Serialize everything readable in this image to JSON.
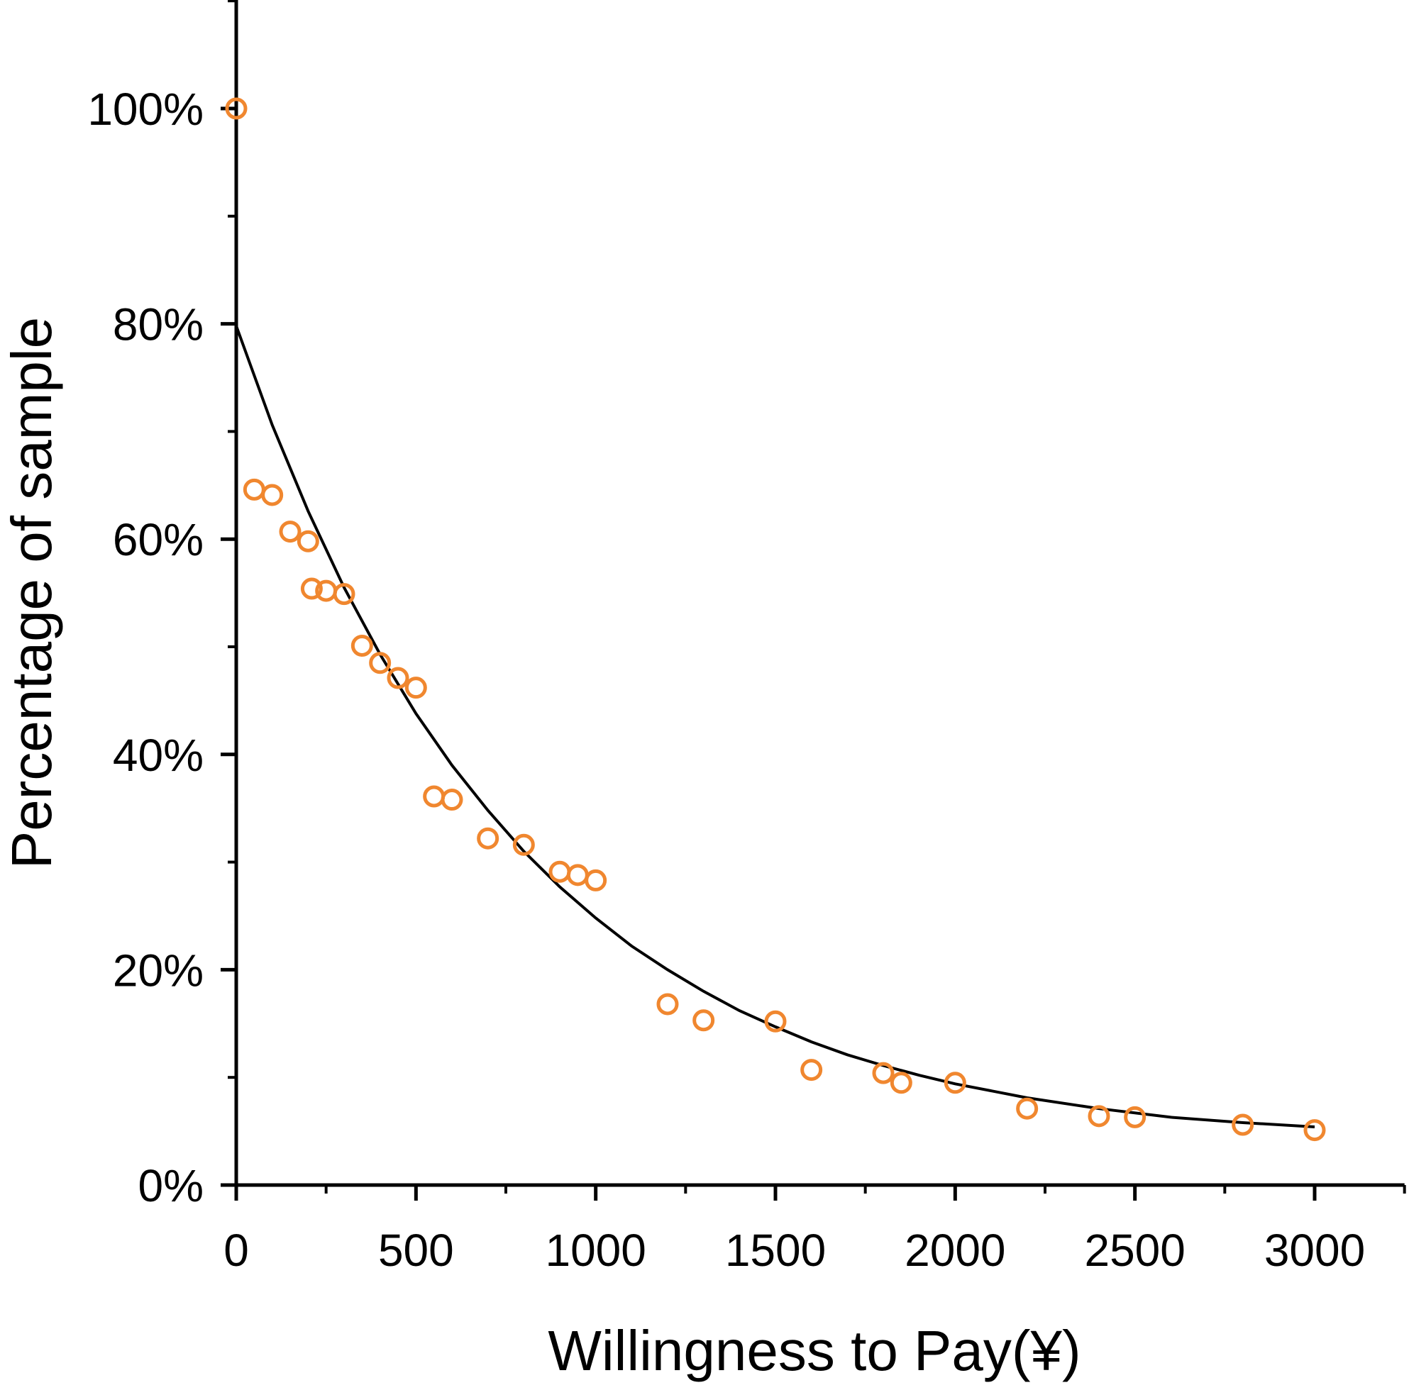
{
  "chart_data": {
    "type": "scatter",
    "xlabel": "Willingness to Pay(¥)",
    "ylabel": "Percentage of sample",
    "xlim": [
      0,
      3250
    ],
    "ylim": [
      0,
      110
    ],
    "x_ticks": [
      0,
      500,
      1000,
      1500,
      2000,
      2500,
      3000
    ],
    "x_tick_labels": [
      "0",
      "500",
      "1000",
      "1500",
      "2000",
      "2500",
      "3000"
    ],
    "y_ticks": [
      0,
      20,
      40,
      60,
      80,
      100
    ],
    "y_tick_labels": [
      "0%",
      "20%",
      "40%",
      "60%",
      "80%",
      "100%"
    ],
    "grid": false,
    "colors": {
      "points": "#F0872F",
      "curve": "#000000"
    },
    "points": [
      {
        "x": 0,
        "y": 100
      },
      {
        "x": 50,
        "y": 64.6
      },
      {
        "x": 100,
        "y": 64.1
      },
      {
        "x": 150,
        "y": 60.7
      },
      {
        "x": 200,
        "y": 59.8
      },
      {
        "x": 210,
        "y": 55.4
      },
      {
        "x": 250,
        "y": 55.2
      },
      {
        "x": 300,
        "y": 54.9
      },
      {
        "x": 350,
        "y": 50.1
      },
      {
        "x": 400,
        "y": 48.5
      },
      {
        "x": 450,
        "y": 47.1
      },
      {
        "x": 500,
        "y": 46.2
      },
      {
        "x": 550,
        "y": 36.1
      },
      {
        "x": 600,
        "y": 35.8
      },
      {
        "x": 700,
        "y": 32.2
      },
      {
        "x": 800,
        "y": 31.6
      },
      {
        "x": 900,
        "y": 29.1
      },
      {
        "x": 950,
        "y": 28.8
      },
      {
        "x": 1000,
        "y": 28.3
      },
      {
        "x": 1200,
        "y": 16.8
      },
      {
        "x": 1300,
        "y": 15.3
      },
      {
        "x": 1500,
        "y": 15.2
      },
      {
        "x": 1600,
        "y": 10.7
      },
      {
        "x": 1800,
        "y": 10.4
      },
      {
        "x": 1850,
        "y": 9.5
      },
      {
        "x": 2000,
        "y": 9.5
      },
      {
        "x": 2200,
        "y": 7.1
      },
      {
        "x": 2400,
        "y": 6.4
      },
      {
        "x": 2500,
        "y": 6.3
      },
      {
        "x": 2800,
        "y": 5.6
      },
      {
        "x": 3000,
        "y": 5.1
      }
    ],
    "fit_curve": [
      {
        "x": 0,
        "y": 79.8
      },
      {
        "x": 100,
        "y": 70.6
      },
      {
        "x": 200,
        "y": 62.6
      },
      {
        "x": 300,
        "y": 55.5
      },
      {
        "x": 400,
        "y": 49.3
      },
      {
        "x": 500,
        "y": 43.8
      },
      {
        "x": 600,
        "y": 39.0
      },
      {
        "x": 700,
        "y": 34.8
      },
      {
        "x": 800,
        "y": 31.0
      },
      {
        "x": 900,
        "y": 27.7
      },
      {
        "x": 1000,
        "y": 24.8
      },
      {
        "x": 1100,
        "y": 22.2
      },
      {
        "x": 1200,
        "y": 20.0
      },
      {
        "x": 1300,
        "y": 18.0
      },
      {
        "x": 1400,
        "y": 16.2
      },
      {
        "x": 1500,
        "y": 14.7
      },
      {
        "x": 1600,
        "y": 13.3
      },
      {
        "x": 1700,
        "y": 12.1
      },
      {
        "x": 1800,
        "y": 11.1
      },
      {
        "x": 1900,
        "y": 10.2
      },
      {
        "x": 2000,
        "y": 9.4
      },
      {
        "x": 2200,
        "y": 8.1
      },
      {
        "x": 2400,
        "y": 7.1
      },
      {
        "x": 2600,
        "y": 6.3
      },
      {
        "x": 2800,
        "y": 5.8
      },
      {
        "x": 3000,
        "y": 5.4
      }
    ]
  }
}
